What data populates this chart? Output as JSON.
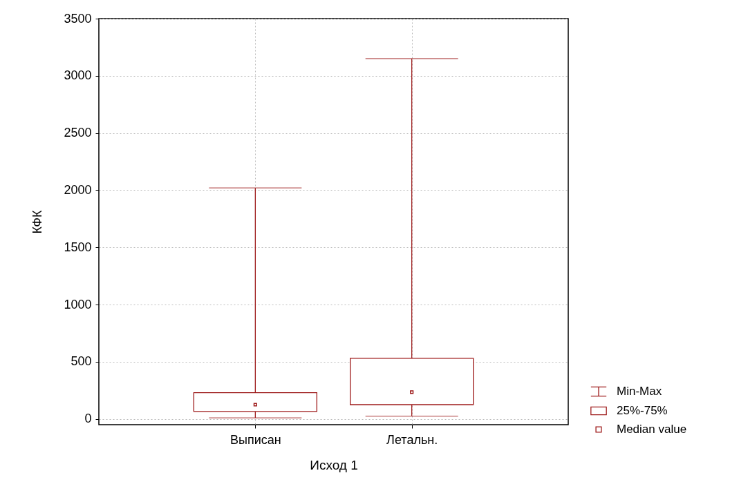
{
  "chart_data": {
    "type": "box",
    "xlabel": "Исход 1",
    "ylabel": "КФК",
    "categories": [
      "Выписан",
      "Летальн."
    ],
    "boxes": [
      {
        "low": 10,
        "q1": 65,
        "median": 125,
        "q3": 230,
        "high": 2020
      },
      {
        "low": 25,
        "q1": 125,
        "median": 235,
        "q3": 530,
        "high": 3150
      }
    ],
    "color": "#9e1b1b",
    "ylim": [
      -50,
      3500
    ],
    "yticks": [
      0,
      500,
      1000,
      1500,
      2000,
      2500,
      3000,
      3500
    ],
    "grid": true,
    "marker": "square",
    "annotations": [
      "Min-Max",
      "25%-75%",
      "Median value"
    ]
  }
}
